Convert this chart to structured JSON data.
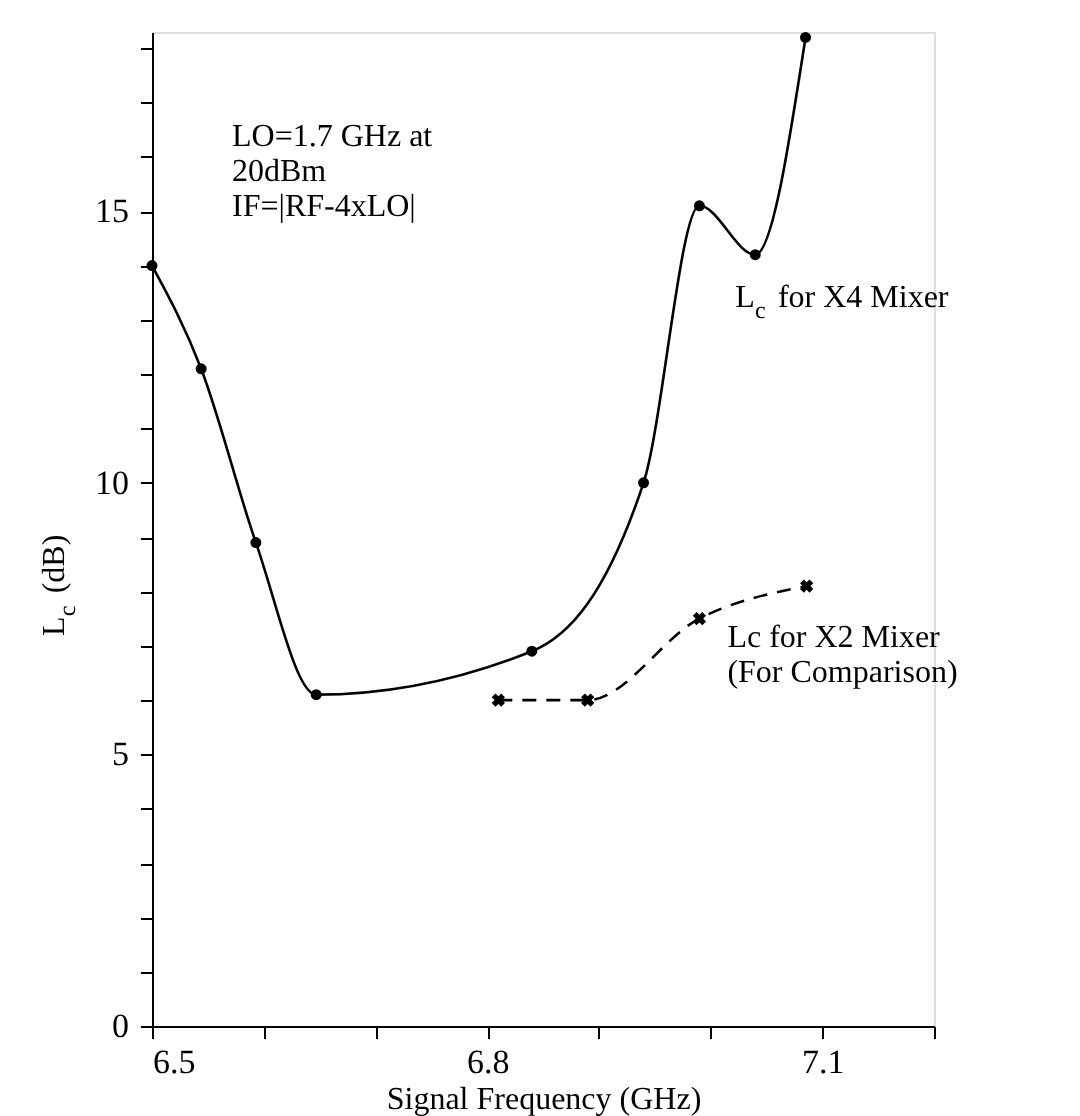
{
  "chart_data": {
    "type": "line",
    "xlabel": "Signal Frequency (GHz)",
    "ylabel": "L$_{c}$(dB)",
    "annotations": [
      "LO=1.7 GHz at\n20dBm\nIF=|RF-4xLO|"
    ],
    "xlim": [
      6.5,
      7.2
    ],
    "ylim": [
      0,
      18.3
    ],
    "xticks": [
      6.5,
      {
        "value": 6.6,
        "label": null
      },
      {
        "value": 6.7,
        "label": null
      },
      6.8,
      {
        "value": 6.9,
        "label": null
      },
      {
        "value": 7.0,
        "label": null
      },
      7.1,
      {
        "value": 7.2,
        "label": null
      }
    ],
    "yticks": [
      0,
      {
        "value": 1,
        "label": null
      },
      {
        "value": 2,
        "label": null
      },
      {
        "value": 3,
        "label": null
      },
      {
        "value": 4,
        "label": null
      },
      5,
      {
        "value": 6,
        "label": null
      },
      {
        "value": 7,
        "label": null
      },
      {
        "value": 8,
        "label": null
      },
      {
        "value": 9,
        "label": null
      },
      10,
      {
        "value": 11,
        "label": null
      },
      {
        "value": 12,
        "label": null
      },
      {
        "value": 13,
        "label": null
      },
      {
        "value": 14,
        "label": null
      },
      15,
      {
        "value": 16,
        "label": null
      },
      {
        "value": 17,
        "label": null
      },
      {
        "value": 18,
        "label": null
      }
    ],
    "grid": false,
    "series": [
      {
        "name": "L$_{c}$ for X4 Mixer",
        "color": "#000000",
        "marker": "circle",
        "line_style": "solid",
        "x": [
          6.5,
          6.544,
          6.593,
          6.647,
          6.84,
          6.94,
          6.99,
          7.04,
          7.085
        ],
        "values": [
          14,
          12.1,
          8.9,
          6.1,
          6.9,
          10,
          15.1,
          14.2,
          18.2
        ]
      },
      {
        "name": "Lc for X2 Mixer\n(For Comparison)",
        "color": "#000000",
        "marker": "cross",
        "line_style": "dashed",
        "x": [
          6.81,
          6.89,
          6.99,
          7.086
        ],
        "values": [
          6.0,
          6.0,
          7.5,
          8.1
        ]
      }
    ]
  }
}
